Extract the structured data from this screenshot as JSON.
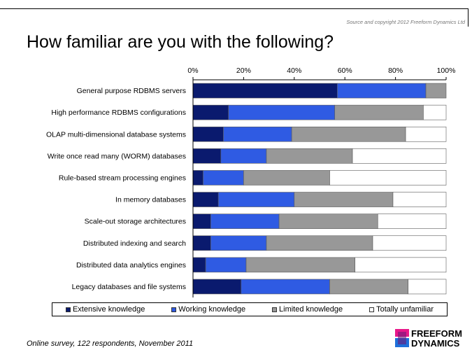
{
  "copyright": "Source and copyright 2012 Freeform Dynamics Ltd",
  "title": "How familiar are you with the following?",
  "footnote": "Online survey, 122 respondents, November 2011",
  "logo": {
    "line1": "FREEFORM",
    "line2": "DYNAMICS",
    "icon": "freeform-dynamics-logo-icon"
  },
  "colors": {
    "Extensive knowledge": "#0a1a6e",
    "Working knowledge": "#2f5be3",
    "Limited knowledge": "#989898",
    "Totally unfamiliar": "#ffffff"
  },
  "chart_data": {
    "type": "bar",
    "orientation": "horizontal",
    "stacked": true,
    "percent_axis": true,
    "xlim": [
      0,
      100
    ],
    "xticks": [
      "0%",
      "20%",
      "40%",
      "60%",
      "80%",
      "100%"
    ],
    "legend_position": "bottom",
    "categories": [
      "General purpose RDBMS servers",
      "High performance RDBMS configurations",
      "OLAP multi-dimensional database systems",
      "Write once read many (WORM) databases",
      "Rule-based stream processing engines",
      "In memory databases",
      "Scale-out storage architectures",
      "Distributed indexing and search",
      "Distributed data analytics engines",
      "Legacy databases and file systems"
    ],
    "series": [
      {
        "name": "Extensive knowledge",
        "values": [
          57,
          14,
          12,
          11,
          4,
          10,
          7,
          7,
          5,
          19
        ]
      },
      {
        "name": "Working knowledge",
        "values": [
          35,
          42,
          27,
          18,
          16,
          30,
          27,
          22,
          16,
          35
        ]
      },
      {
        "name": "Limited knowledge",
        "values": [
          8,
          35,
          45,
          34,
          34,
          39,
          39,
          42,
          43,
          31
        ]
      },
      {
        "name": "Totally unfamiliar",
        "values": [
          0,
          9,
          16,
          37,
          46,
          21,
          27,
          29,
          36,
          15
        ]
      }
    ]
  }
}
